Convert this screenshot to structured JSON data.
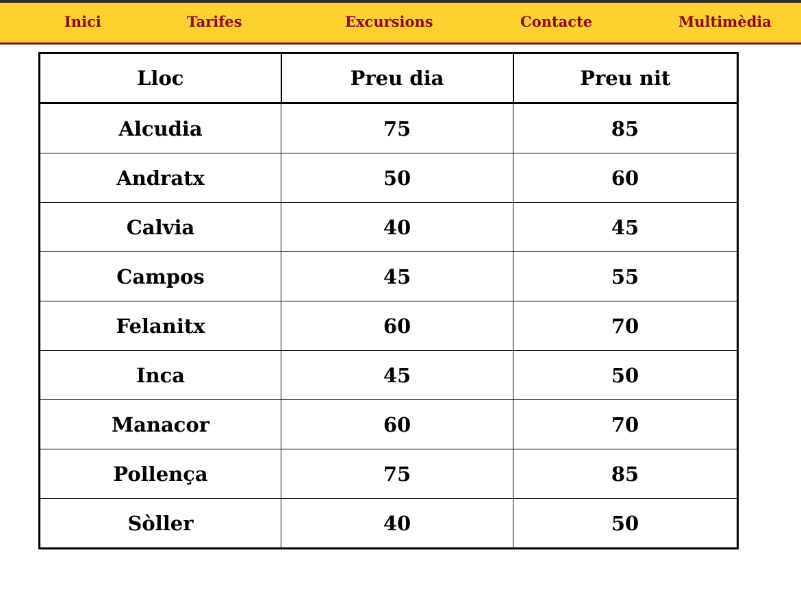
{
  "nav": {
    "items": [
      {
        "label": "Inici"
      },
      {
        "label": "Tarifes"
      },
      {
        "label": "Excursions"
      },
      {
        "label": "Contacte"
      },
      {
        "label": "Multimèdia"
      }
    ]
  },
  "colors": {
    "nav_background": "#fdd12e",
    "nav_text": "#8b0a1a",
    "nav_border": "#8b0a1a"
  },
  "table": {
    "headers": [
      "Lloc",
      "Preu dia",
      "Preu nit"
    ],
    "rows": [
      [
        "Alcudia",
        "75",
        "85"
      ],
      [
        "Andratx",
        "50",
        "60"
      ],
      [
        "Calvia",
        "40",
        "45"
      ],
      [
        "Campos",
        "45",
        "55"
      ],
      [
        "Felanitx",
        "60",
        "70"
      ],
      [
        "Inca",
        "45",
        "50"
      ],
      [
        "Manacor",
        "60",
        "70"
      ],
      [
        "Pollença",
        "75",
        "85"
      ],
      [
        "Sòller",
        "40",
        "50"
      ]
    ]
  }
}
